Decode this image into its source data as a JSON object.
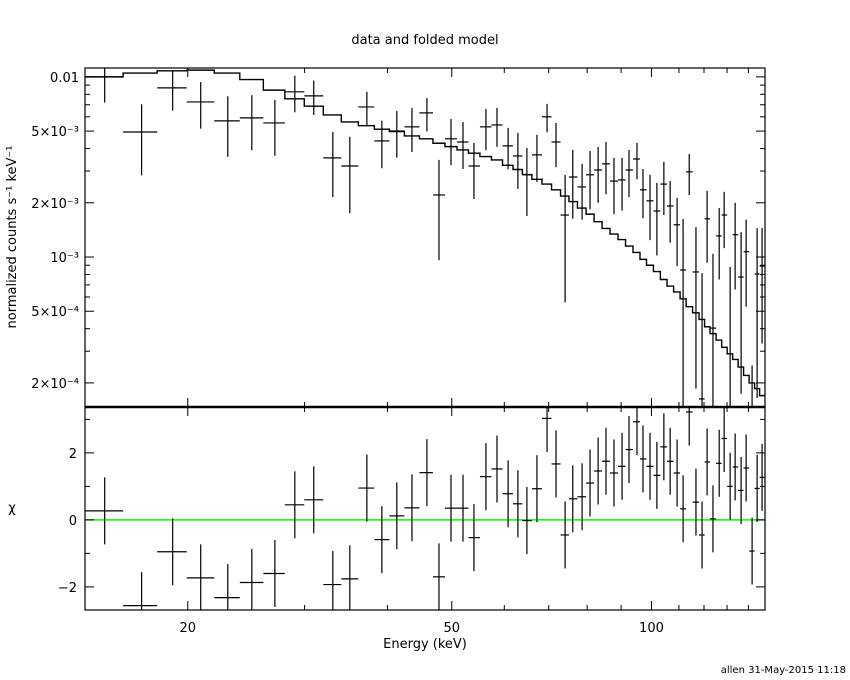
{
  "chart_data": [
    {
      "type": "line",
      "panel": "top",
      "title": "data and folded model",
      "ylabel": "normalized counts s⁻¹ keV⁻¹",
      "xscale": "log",
      "yscale": "log",
      "xlim": [
        14.0,
        148.3
      ],
      "ylim": [
        0.000147,
        0.0112
      ],
      "yticks": [
        {
          "value": 0.01,
          "label": "0.01"
        },
        {
          "value": 0.005,
          "label": "5×10⁻³"
        },
        {
          "value": 0.002,
          "label": "2×10⁻³"
        },
        {
          "value": 0.001,
          "label": "10⁻³"
        },
        {
          "value": 0.0005,
          "label": "5×10⁻⁴"
        },
        {
          "value": 0.0002,
          "label": "2×10⁻⁴"
        }
      ],
      "grid": false,
      "energy": [
        14.99,
        17.04,
        18.98,
        20.92,
        22.98,
        24.98,
        27.06,
        29.0,
        30.97,
        33.09,
        35.1,
        37.24,
        39.23,
        41.32,
        43.55,
        45.87,
        47.83,
        49.87,
        51.99,
        54.0,
        56.3,
        58.5,
        60.8,
        62.9,
        64.9,
        67.2,
        69.6,
        71.8,
        74.1,
        76.1,
        78.6,
        80.8,
        83.1,
        85.4,
        87.8,
        90.3,
        92.5,
        95.1,
        97.1,
        99.5,
        101.9,
        104.4,
        106.7,
        109.3,
        111.6,
        114.0,
        116.7,
        119.2,
        121.3,
        123.8,
        126.5,
        128.7,
        131.4,
        133.7,
        136.5,
        138.9,
        141.8,
        144.3,
        146.8
      ],
      "data": [
        0.01,
        0.00494,
        0.00869,
        0.00726,
        0.0057,
        0.00592,
        0.00555,
        0.00826,
        0.00784,
        0.00355,
        0.0032,
        0.00681,
        0.00441,
        0.00501,
        0.00528,
        0.00631,
        0.00221,
        0.00453,
        0.00435,
        0.0032,
        0.00528,
        0.00541,
        0.00414,
        0.00364,
        0.00286,
        0.00369,
        0.006,
        0.00435,
        0.00171,
        0.00278,
        0.00245,
        0.00286,
        0.00304,
        0.00329,
        0.00264,
        0.00268,
        0.00304,
        0.0035,
        0.00236,
        0.00205,
        0.0018,
        0.00254,
        0.00192,
        0.00151,
        0.000847,
        0.00297,
        0.000826,
        0.000163,
        0.00163,
        0.000403,
        0.00131,
        0.00171,
        0.00012,
        0.00133,
        0.000774,
        0.00107,
        5e-05,
        0.000805,
        0.000891
      ],
      "error": [
        0.0028,
        0.0021,
        0.0022,
        0.0021,
        0.0021,
        0.002,
        0.0019,
        0.0019,
        0.0017,
        0.0014,
        0.00145,
        0.00145,
        0.0013,
        0.00145,
        0.00145,
        0.00133,
        0.00125,
        0.0013,
        0.00127,
        0.0011,
        0.00136,
        0.00132,
        0.00107,
        0.00125,
        0.00117,
        0.00108,
        0.00108,
        0.0012,
        0.00115,
        0.00115,
        0.00084,
        0.00102,
        0.00104,
        0.00106,
        0.00091,
        0.00087,
        0.00089,
        0.0008,
        0.00072,
        0.00081,
        0.00078,
        0.00083,
        0.00072,
        0.00062,
        0.00078,
        0.00076,
        0.00064,
        0.00065,
        0.0007,
        0.00064,
        0.00056,
        0.00059,
        0.00076,
        0.00067,
        0.0006,
        0.00054,
        0.0002,
        0.00064,
        0.00056
      ],
      "model": [
        0.01,
        0.0105,
        0.0108,
        0.0109,
        0.0105,
        0.00966,
        0.00844,
        0.00755,
        0.00687,
        0.00615,
        0.00562,
        0.00536,
        0.00512,
        0.00497,
        0.0047,
        0.00453,
        0.00428,
        0.0041,
        0.00393,
        0.00377,
        0.00361,
        0.00346,
        0.00323,
        0.00306,
        0.00287,
        0.0027,
        0.00254,
        0.00236,
        0.00218,
        0.00203,
        0.00187,
        0.00173,
        0.00157,
        0.00144,
        0.00134,
        0.00125,
        0.00115,
        0.00106,
        0.00097,
        0.0009,
        0.00083,
        0.00075,
        0.00069,
        0.00064,
        0.000586,
        0.00053,
        0.00049,
        0.00045,
        0.00041,
        0.000376,
        0.000346,
        0.000315,
        0.00029,
        0.00027,
        0.000245,
        0.00022,
        0.0002,
        0.000186,
        0.00017
      ]
    },
    {
      "type": "scatter",
      "panel": "bottom",
      "ylabel": "χ",
      "xlabel": "Energy (keV)",
      "xscale": "log",
      "xlim": [
        14.0,
        148.3
      ],
      "ylim": [
        -2.69,
        3.37
      ],
      "xticks": [
        {
          "value": 20,
          "label": "20"
        },
        {
          "value": 50,
          "label": "50"
        },
        {
          "value": 100,
          "label": "100"
        }
      ],
      "yticks": [
        {
          "value": 2,
          "label": "2"
        },
        {
          "value": 0,
          "label": "0"
        },
        {
          "value": -2,
          "label": "−2"
        }
      ],
      "zero_line_color": "#00ff00",
      "residual_error": 1,
      "residuals": [
        0.27,
        -2.56,
        -0.95,
        -1.73,
        -2.32,
        -1.87,
        -1.6,
        0.45,
        0.6,
        -1.93,
        -1.76,
        0.95,
        -0.59,
        0.12,
        0.36,
        1.41,
        -1.7,
        0.35,
        0.35,
        -0.53,
        1.29,
        1.52,
        0.78,
        0.48,
        -0.02,
        0.93,
        3.03,
        1.67,
        -0.45,
        0.63,
        0.69,
        1.1,
        1.46,
        1.75,
        1.4,
        1.6,
        2.1,
        2.93,
        1.82,
        1.6,
        1.33,
        2.18,
        1.75,
        1.4,
        0.33,
        3.22,
        0.53,
        -0.45,
        1.73,
        0.03,
        1.69,
        2.43,
        1.0,
        1.58,
        0.88,
        1.55,
        -0.93,
        0.94,
        1.27
      ]
    }
  ],
  "footer": "allen 31-May-2015 11:18"
}
